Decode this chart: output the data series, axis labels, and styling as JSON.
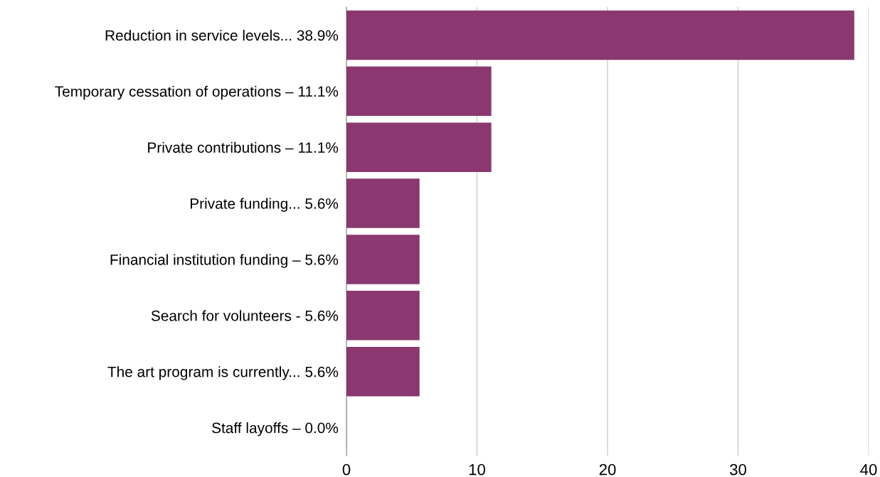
{
  "chart_data": {
    "type": "bar",
    "orientation": "horizontal",
    "categories": [
      "Reduction in service levels... 38.9%",
      "Temporary cessation of operations – 11.1%",
      "Private contributions – 11.1%",
      "Private funding... 5.6%",
      "Financial institution funding – 5.6%",
      "Search for volunteers - 5.6%",
      "The art program is currently... 5.6%",
      "Staff layoffs – 0.0%"
    ],
    "values": [
      38.9,
      11.1,
      11.1,
      5.6,
      5.6,
      5.6,
      5.6,
      0.0
    ],
    "color": "#8b3870",
    "xlim": [
      0,
      40
    ],
    "xticks": [
      0,
      10,
      20,
      30,
      40
    ],
    "grid": "x"
  }
}
